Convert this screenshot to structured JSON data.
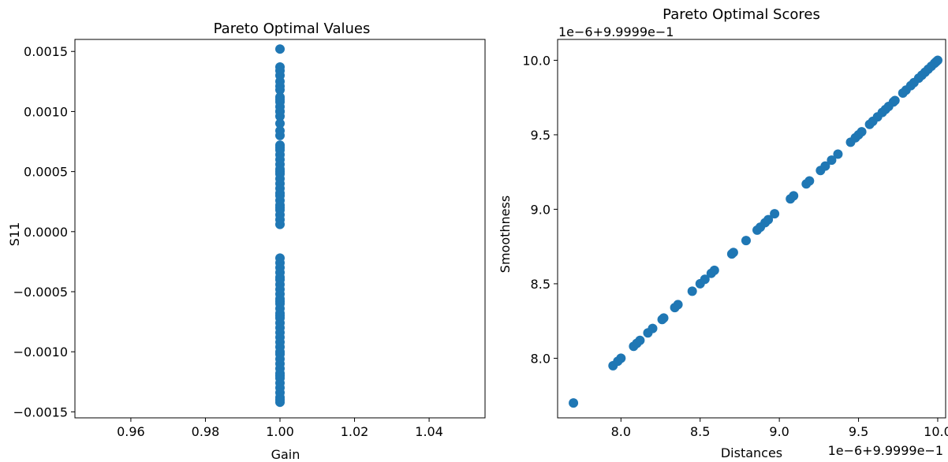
{
  "chart_data": [
    {
      "type": "scatter",
      "title": "Pareto Optimal Values",
      "xlabel": "Gain",
      "ylabel": "S11",
      "xlim": [
        0.945,
        1.055
      ],
      "ylim": [
        -0.00155,
        0.0016
      ],
      "xticks": [
        0.96,
        0.98,
        1.0,
        1.02,
        1.04
      ],
      "xtick_labels": [
        "0.96",
        "0.98",
        "1.00",
        "1.02",
        "1.04"
      ],
      "yticks": [
        -0.0015,
        -0.001,
        -0.0005,
        0.0,
        0.0005,
        0.001,
        0.0015
      ],
      "ytick_labels": [
        "−0.0015",
        "−0.0010",
        "−0.0005",
        "0.0000",
        "0.0005",
        "0.0010",
        "0.0015"
      ],
      "marker_color": "#1f77b4",
      "points": {
        "x": [
          1.0,
          1.0,
          1.0,
          1.0,
          1.0,
          1.0,
          1.0,
          1.0,
          1.0,
          1.0,
          1.0,
          1.0,
          1.0,
          1.0,
          1.0,
          1.0,
          1.0,
          1.0,
          1.0,
          1.0,
          1.0,
          1.0,
          1.0,
          1.0,
          1.0,
          1.0,
          1.0,
          1.0,
          1.0,
          1.0,
          1.0,
          1.0,
          1.0,
          1.0,
          1.0,
          1.0,
          1.0,
          1.0,
          1.0,
          1.0,
          1.0,
          1.0,
          1.0,
          1.0,
          1.0,
          1.0,
          1.0,
          1.0,
          1.0,
          1.0,
          1.0,
          1.0,
          1.0,
          1.0,
          1.0,
          1.0,
          1.0,
          1.0,
          1.0,
          1.0,
          1.0,
          1.0,
          1.0,
          1.0,
          1.0,
          1.0,
          1.0,
          1.0,
          1.0,
          1.0,
          1.0,
          1.0,
          1.0,
          1.0
        ],
        "y": [
          0.00152,
          0.00137,
          0.00134,
          0.0013,
          0.00125,
          0.00121,
          0.00118,
          0.00112,
          0.00108,
          0.00104,
          0.001,
          0.00096,
          0.0009,
          0.00084,
          0.0008,
          0.00072,
          0.00068,
          0.00064,
          0.0006,
          0.00056,
          0.00052,
          0.00048,
          0.00044,
          0.0004,
          0.00036,
          0.00032,
          0.00026,
          0.00022,
          0.00018,
          0.00014,
          0.0001,
          6e-05,
          -0.00022,
          -0.00026,
          -0.0003,
          -0.00034,
          -0.00038,
          -0.00044,
          -0.00048,
          -0.00052,
          -0.00056,
          -0.0006,
          -0.00064,
          -0.00068,
          -0.00072,
          -0.00076,
          -0.0008,
          -0.00084,
          -0.00088,
          -0.00092,
          -0.00096,
          -0.00102,
          -0.00106,
          -0.0011,
          -0.00114,
          -0.00118,
          -0.00122,
          -0.00126,
          -0.0013,
          -0.00134,
          -0.00138,
          -0.00142,
          0.0002,
          0.0005,
          0.0007,
          0.001,
          -0.0004,
          -0.0007,
          -0.001,
          -0.0012,
          -0.0014,
          0.0011,
          0.0003,
          -0.00058
        ]
      }
    },
    {
      "type": "scatter",
      "title": "Pareto Optimal Scores",
      "xlabel": "Distances",
      "ylabel": "Smoothness",
      "x_offset_label": "1e−6+9.9999e−1",
      "y_offset_label": "1e−6+9.9999e−1",
      "xlim": [
        7.6,
        10.05
      ],
      "ylim": [
        7.6,
        10.14
      ],
      "xticks": [
        8.0,
        8.5,
        9.0,
        9.5,
        10.0
      ],
      "xtick_labels": [
        "8.0",
        "8.5",
        "9.0",
        "9.5",
        "10.0"
      ],
      "yticks": [
        8.0,
        8.5,
        9.0,
        9.5,
        10.0
      ],
      "ytick_labels": [
        "8.0",
        "8.5",
        "9.0",
        "9.5",
        "10.0"
      ],
      "marker_color": "#1f77b4",
      "points": {
        "x": [
          7.7,
          7.95,
          7.98,
          8.0,
          8.08,
          8.1,
          8.12,
          8.17,
          8.2,
          8.26,
          8.27,
          8.34,
          8.36,
          8.45,
          8.5,
          8.53,
          8.57,
          8.59,
          8.7,
          8.71,
          8.79,
          8.86,
          8.88,
          8.91,
          8.93,
          8.97,
          9.07,
          9.09,
          9.17,
          9.19,
          9.26,
          9.29,
          9.33,
          9.37,
          9.45,
          9.48,
          9.5,
          9.52,
          9.57,
          9.59,
          9.62,
          9.65,
          9.67,
          9.69,
          9.72,
          9.73,
          9.78,
          9.8,
          9.83,
          9.85,
          9.88,
          9.9,
          9.92,
          9.94,
          9.96,
          9.98,
          9.99,
          10.0
        ],
        "y": [
          7.7,
          7.95,
          7.98,
          8.0,
          8.08,
          8.1,
          8.12,
          8.17,
          8.2,
          8.26,
          8.27,
          8.34,
          8.36,
          8.45,
          8.5,
          8.53,
          8.57,
          8.59,
          8.7,
          8.71,
          8.79,
          8.86,
          8.88,
          8.91,
          8.93,
          8.97,
          9.07,
          9.09,
          9.17,
          9.19,
          9.26,
          9.29,
          9.33,
          9.37,
          9.45,
          9.48,
          9.5,
          9.52,
          9.57,
          9.59,
          9.62,
          9.65,
          9.67,
          9.69,
          9.72,
          9.73,
          9.78,
          9.8,
          9.83,
          9.85,
          9.88,
          9.9,
          9.92,
          9.94,
          9.96,
          9.98,
          9.99,
          10.0
        ]
      }
    }
  ]
}
